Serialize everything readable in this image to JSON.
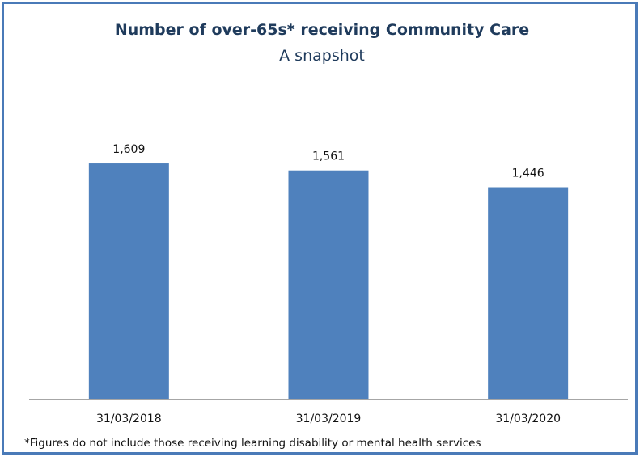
{
  "chart_data": {
    "type": "bar",
    "title": "Number of over-65s* receiving Community Care",
    "subtitle": "A snapshot",
    "categories": [
      "31/03/2018",
      "31/03/2019",
      "31/03/2020"
    ],
    "values": [
      1609,
      1561,
      1446
    ],
    "value_labels": [
      "1,609",
      "1,561",
      "1,446"
    ],
    "ylim": [
      0,
      2400
    ],
    "grid": false,
    "legend": "none",
    "bar_color": "#4f81bd",
    "footnote": "*Figures do not include those receiving learning disability or mental health services"
  },
  "colors": {
    "frame_border": "#4a7ab8",
    "title_text": "#1f3b5c",
    "axis_line": "#a6a6a6"
  }
}
